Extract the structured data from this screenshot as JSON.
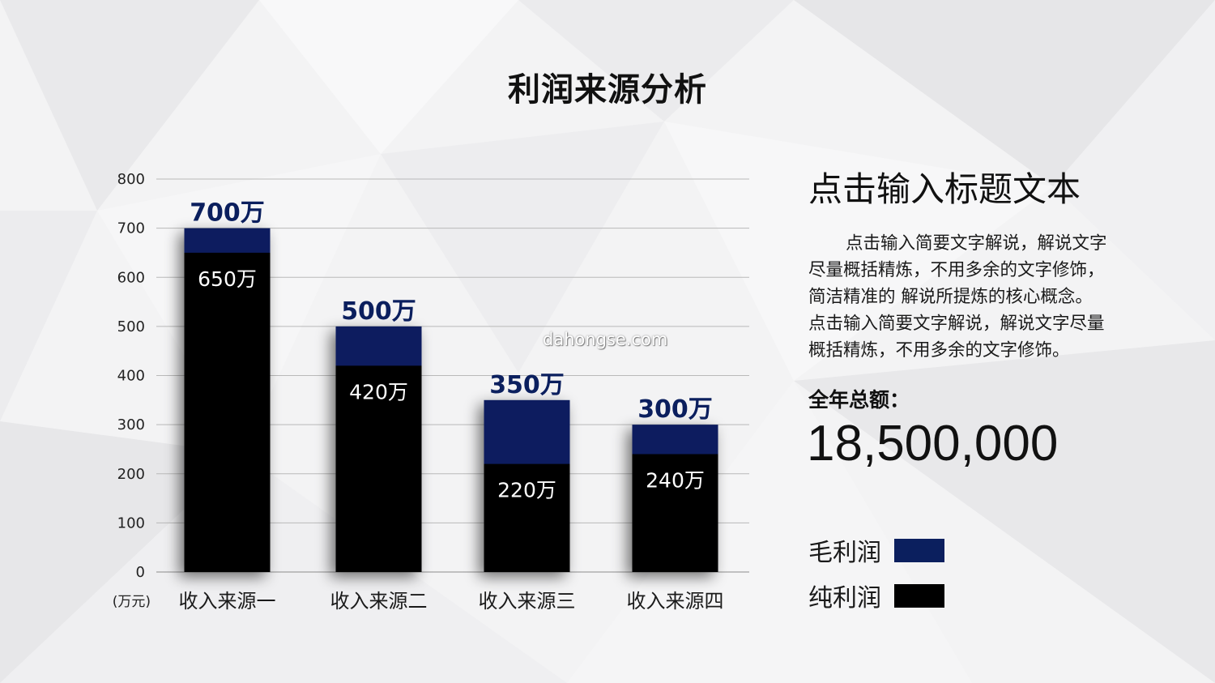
{
  "page": {
    "title": "利润来源分析",
    "watermark": "dahongse.com"
  },
  "side_panel": {
    "heading": "点击输入标题文本",
    "body_lines": [
      "点击输入简要文字解说，解说文字",
      "尽量概括精炼，不用多余的文字修饰，",
      "简洁精准的 解说所提炼的核心概念。",
      "点击输入简要文字解说，解说文字尽量",
      "概括精炼，不用多余的文字修饰。"
    ],
    "total_label": "全年总额：",
    "total_value": "18,500,000"
  },
  "legend": [
    {
      "label": "毛利润",
      "color": "#0b1f5e"
    },
    {
      "label": "纯利润",
      "color": "#000000"
    }
  ],
  "chart_data": {
    "type": "bar",
    "title": "利润来源分析",
    "categories": [
      "收入来源一",
      "收入来源二",
      "收入来源三",
      "收入来源四"
    ],
    "series": [
      {
        "name": "毛利润",
        "values": [
          700,
          500,
          350,
          300
        ],
        "labels": [
          "700万",
          "500万",
          "350万",
          "300万"
        ],
        "color": "#0b1f5e"
      },
      {
        "name": "纯利润",
        "values": [
          650,
          420,
          220,
          240
        ],
        "labels": [
          "650万",
          "420万",
          "220万",
          "240万"
        ],
        "color": "#000000"
      }
    ],
    "ylabel": "(万元)",
    "ylim": [
      0,
      800
    ],
    "yticks": [
      0,
      100,
      200,
      300,
      400,
      500,
      600,
      700,
      800
    ],
    "grid": true,
    "legend_position": "right"
  }
}
